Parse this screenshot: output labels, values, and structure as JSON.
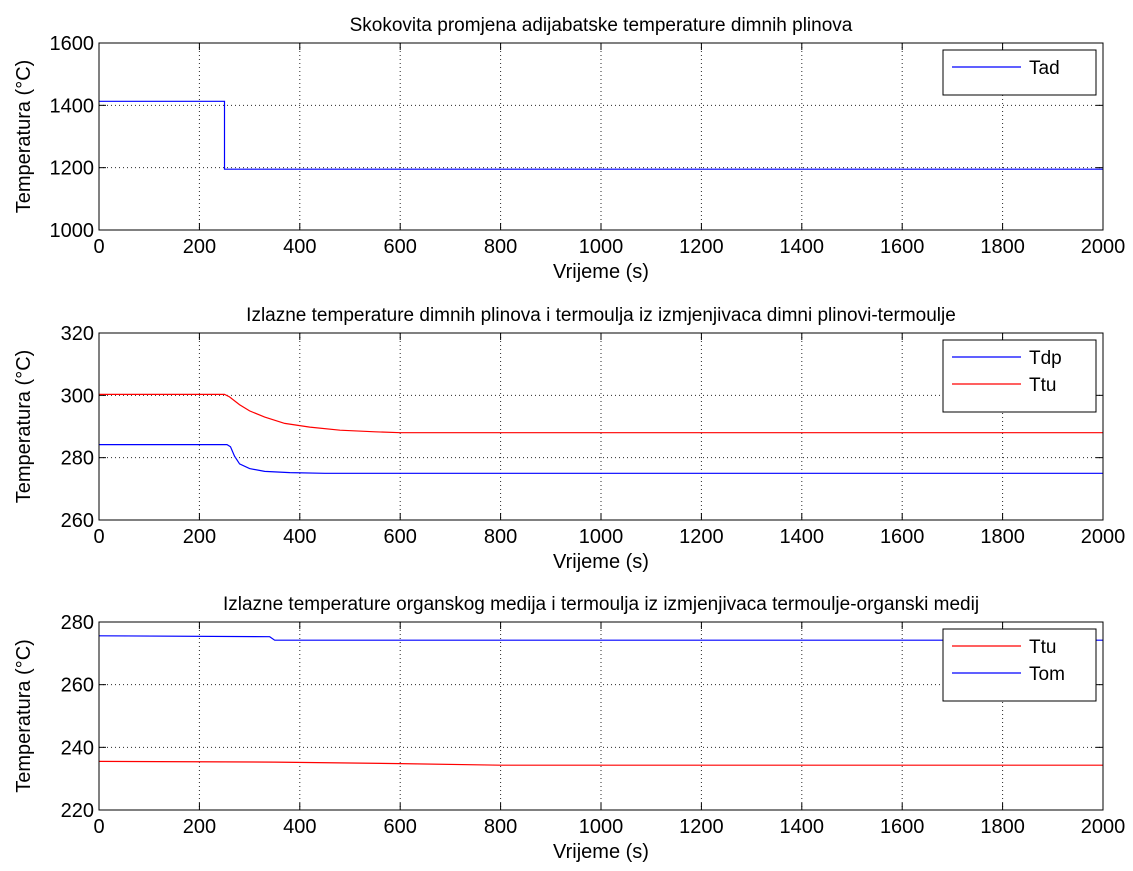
{
  "chart_data": [
    {
      "type": "line",
      "title": "Skokovita promjena adijabatske temperature dimnih plinova",
      "xlabel": "Vrijeme (s)",
      "ylabel": "Temperatura (°C)",
      "xlim": [
        0,
        2000
      ],
      "ylim": [
        1000,
        1600
      ],
      "xticks": [
        "0",
        "200",
        "400",
        "600",
        "800",
        "1000",
        "1200",
        "1400",
        "1600",
        "1800",
        "2000"
      ],
      "yticks": [
        "1000",
        "1200",
        "1400",
        "1600"
      ],
      "grid": true,
      "legend_position": "top-right",
      "series": [
        {
          "name": "Tad",
          "color": "#0000ff",
          "points": [
            [
              0,
              1413
            ],
            [
              250,
              1413
            ],
            [
              250,
              1195
            ],
            [
              2000,
              1195
            ]
          ]
        }
      ]
    },
    {
      "type": "line",
      "title": "Izlazne temperature dimnih plinova i termoulja iz izmjenjivaca dimni plinovi-termoulje",
      "xlabel": "Vrijeme (s)",
      "ylabel": "Temperatura (°C)",
      "xlim": [
        0,
        2000
      ],
      "ylim": [
        260,
        320
      ],
      "xticks": [
        "0",
        "200",
        "400",
        "600",
        "800",
        "1000",
        "1200",
        "1400",
        "1600",
        "1800",
        "2000"
      ],
      "yticks": [
        "260",
        "280",
        "300",
        "320"
      ],
      "grid": true,
      "legend_position": "top-right",
      "series": [
        {
          "name": "Tdp",
          "color": "#0000ff",
          "points": [
            [
              0,
              284.2
            ],
            [
              255,
              284.2
            ],
            [
              262,
              283.5
            ],
            [
              270,
              280.5
            ],
            [
              280,
              278
            ],
            [
              300,
              276.5
            ],
            [
              330,
              275.6
            ],
            [
              380,
              275.2
            ],
            [
              450,
              275
            ],
            [
              2000,
              275
            ]
          ]
        },
        {
          "name": "Ttu",
          "color": "#ff0000",
          "points": [
            [
              0,
              300.3
            ],
            [
              250,
              300.3
            ],
            [
              260,
              299.5
            ],
            [
              280,
              297
            ],
            [
              300,
              295
            ],
            [
              330,
              293
            ],
            [
              370,
              291
            ],
            [
              420,
              289.8
            ],
            [
              480,
              288.8
            ],
            [
              550,
              288.3
            ],
            [
              600,
              288
            ],
            [
              2000,
              288
            ]
          ]
        }
      ]
    },
    {
      "type": "line",
      "title": "Izlazne temperature organskog medija i termoulja iz izmjenjivaca termoulje-organski medij",
      "xlabel": "Vrijeme (s)",
      "ylabel": "Temperatura (°C)",
      "xlim": [
        0,
        2000
      ],
      "ylim": [
        220,
        280
      ],
      "xticks": [
        "0",
        "200",
        "400",
        "600",
        "800",
        "1000",
        "1200",
        "1400",
        "1600",
        "1800",
        "2000"
      ],
      "yticks": [
        "220",
        "240",
        "260",
        "280"
      ],
      "grid": true,
      "legend_position": "top-right",
      "series": [
        {
          "name": "Ttu",
          "color": "#ff0000",
          "points": [
            [
              0,
              235.5
            ],
            [
              350,
              235.3
            ],
            [
              600,
              234.8
            ],
            [
              800,
              234.3
            ],
            [
              2000,
              234.3
            ]
          ]
        },
        {
          "name": "Tom",
          "color": "#0000ff",
          "points": [
            [
              0,
              275.6
            ],
            [
              340,
              275.3
            ],
            [
              350,
              274.2
            ],
            [
              2000,
              274.2
            ]
          ]
        }
      ]
    }
  ]
}
